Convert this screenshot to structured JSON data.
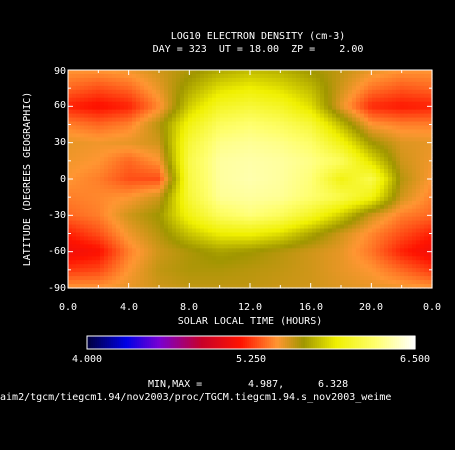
{
  "chart_data": {
    "type": "heatmap",
    "title": "LOG10 ELECTRON DENSITY (cm-3)",
    "subtitle": "DAY = 323  UT = 18.00  ZP =    2.00",
    "xlabel": "SOLAR LOCAL TIME (HOURS)",
    "ylabel": "LATITUDE (DEGREES GEOGRAPHIC)",
    "xlim": [
      0,
      24
    ],
    "ylim": [
      -90,
      90
    ],
    "x_ticks": [
      "0.0",
      "4.0",
      "8.0",
      "12.0",
      "16.0",
      "20.0",
      "0.0"
    ],
    "y_ticks": [
      "90",
      "60",
      "30",
      "0",
      "-30",
      "-60",
      "-90"
    ],
    "colorbar": {
      "min_label": "4.000",
      "mid_label": "5.250",
      "max_label": "6.500",
      "range": [
        4.0,
        6.5
      ]
    },
    "minmax_label": "MIN,MAX =",
    "min_value": "4.987,",
    "max_value": "6.328",
    "path": "/aim2/tgcm/tiegcm1.94/nov2003/proc/TGCM.tiegcm1.94.s_nov2003_weime",
    "local_time": [
      0,
      2,
      4,
      6,
      8,
      10,
      12,
      14,
      16,
      18,
      20,
      22,
      24
    ],
    "latitude": [
      90,
      75,
      60,
      45,
      30,
      15,
      0,
      -15,
      -30,
      -45,
      -60,
      -75,
      -90
    ],
    "values": [
      [
        5.45,
        5.45,
        5.48,
        5.55,
        5.62,
        5.7,
        5.75,
        5.72,
        5.65,
        5.58,
        5.5,
        5.45,
        5.45
      ],
      [
        5.35,
        5.3,
        5.35,
        5.5,
        5.7,
        5.85,
        5.9,
        5.85,
        5.75,
        5.55,
        5.38,
        5.32,
        5.35
      ],
      [
        5.2,
        5.15,
        5.2,
        5.42,
        5.8,
        6.0,
        6.05,
        6.0,
        5.85,
        5.5,
        5.22,
        5.18,
        5.2
      ],
      [
        5.4,
        5.35,
        5.4,
        5.6,
        5.95,
        6.15,
        6.2,
        6.15,
        6.05,
        5.75,
        5.45,
        5.4,
        5.4
      ],
      [
        5.5,
        5.48,
        5.5,
        5.55,
        6.05,
        6.25,
        6.28,
        6.25,
        6.18,
        5.95,
        5.65,
        5.52,
        5.5
      ],
      [
        5.48,
        5.45,
        5.35,
        5.45,
        6.1,
        6.3,
        6.32,
        6.3,
        6.25,
        6.15,
        5.85,
        5.55,
        5.48
      ],
      [
        5.45,
        5.4,
        5.3,
        5.3,
        6.08,
        6.3,
        6.33,
        6.3,
        6.22,
        5.95,
        6.1,
        5.6,
        5.45
      ],
      [
        5.4,
        5.42,
        5.45,
        5.55,
        6.05,
        6.28,
        6.3,
        6.28,
        6.2,
        6.1,
        5.95,
        5.55,
        5.4
      ],
      [
        5.35,
        5.4,
        5.55,
        5.65,
        5.95,
        6.15,
        6.22,
        6.15,
        6.0,
        5.8,
        5.55,
        5.4,
        5.35
      ],
      [
        5.2,
        5.3,
        5.48,
        5.6,
        5.78,
        5.9,
        5.92,
        5.85,
        5.7,
        5.55,
        5.42,
        5.3,
        5.2
      ],
      [
        5.1,
        5.15,
        5.4,
        5.55,
        5.62,
        5.68,
        5.65,
        5.6,
        5.55,
        5.5,
        5.38,
        5.2,
        5.1
      ],
      [
        5.25,
        5.28,
        5.45,
        5.58,
        5.62,
        5.62,
        5.6,
        5.58,
        5.55,
        5.5,
        5.45,
        5.35,
        5.25
      ],
      [
        5.45,
        5.45,
        5.5,
        5.55,
        5.58,
        5.58,
        5.58,
        5.56,
        5.55,
        5.52,
        5.5,
        5.48,
        5.45
      ]
    ]
  }
}
